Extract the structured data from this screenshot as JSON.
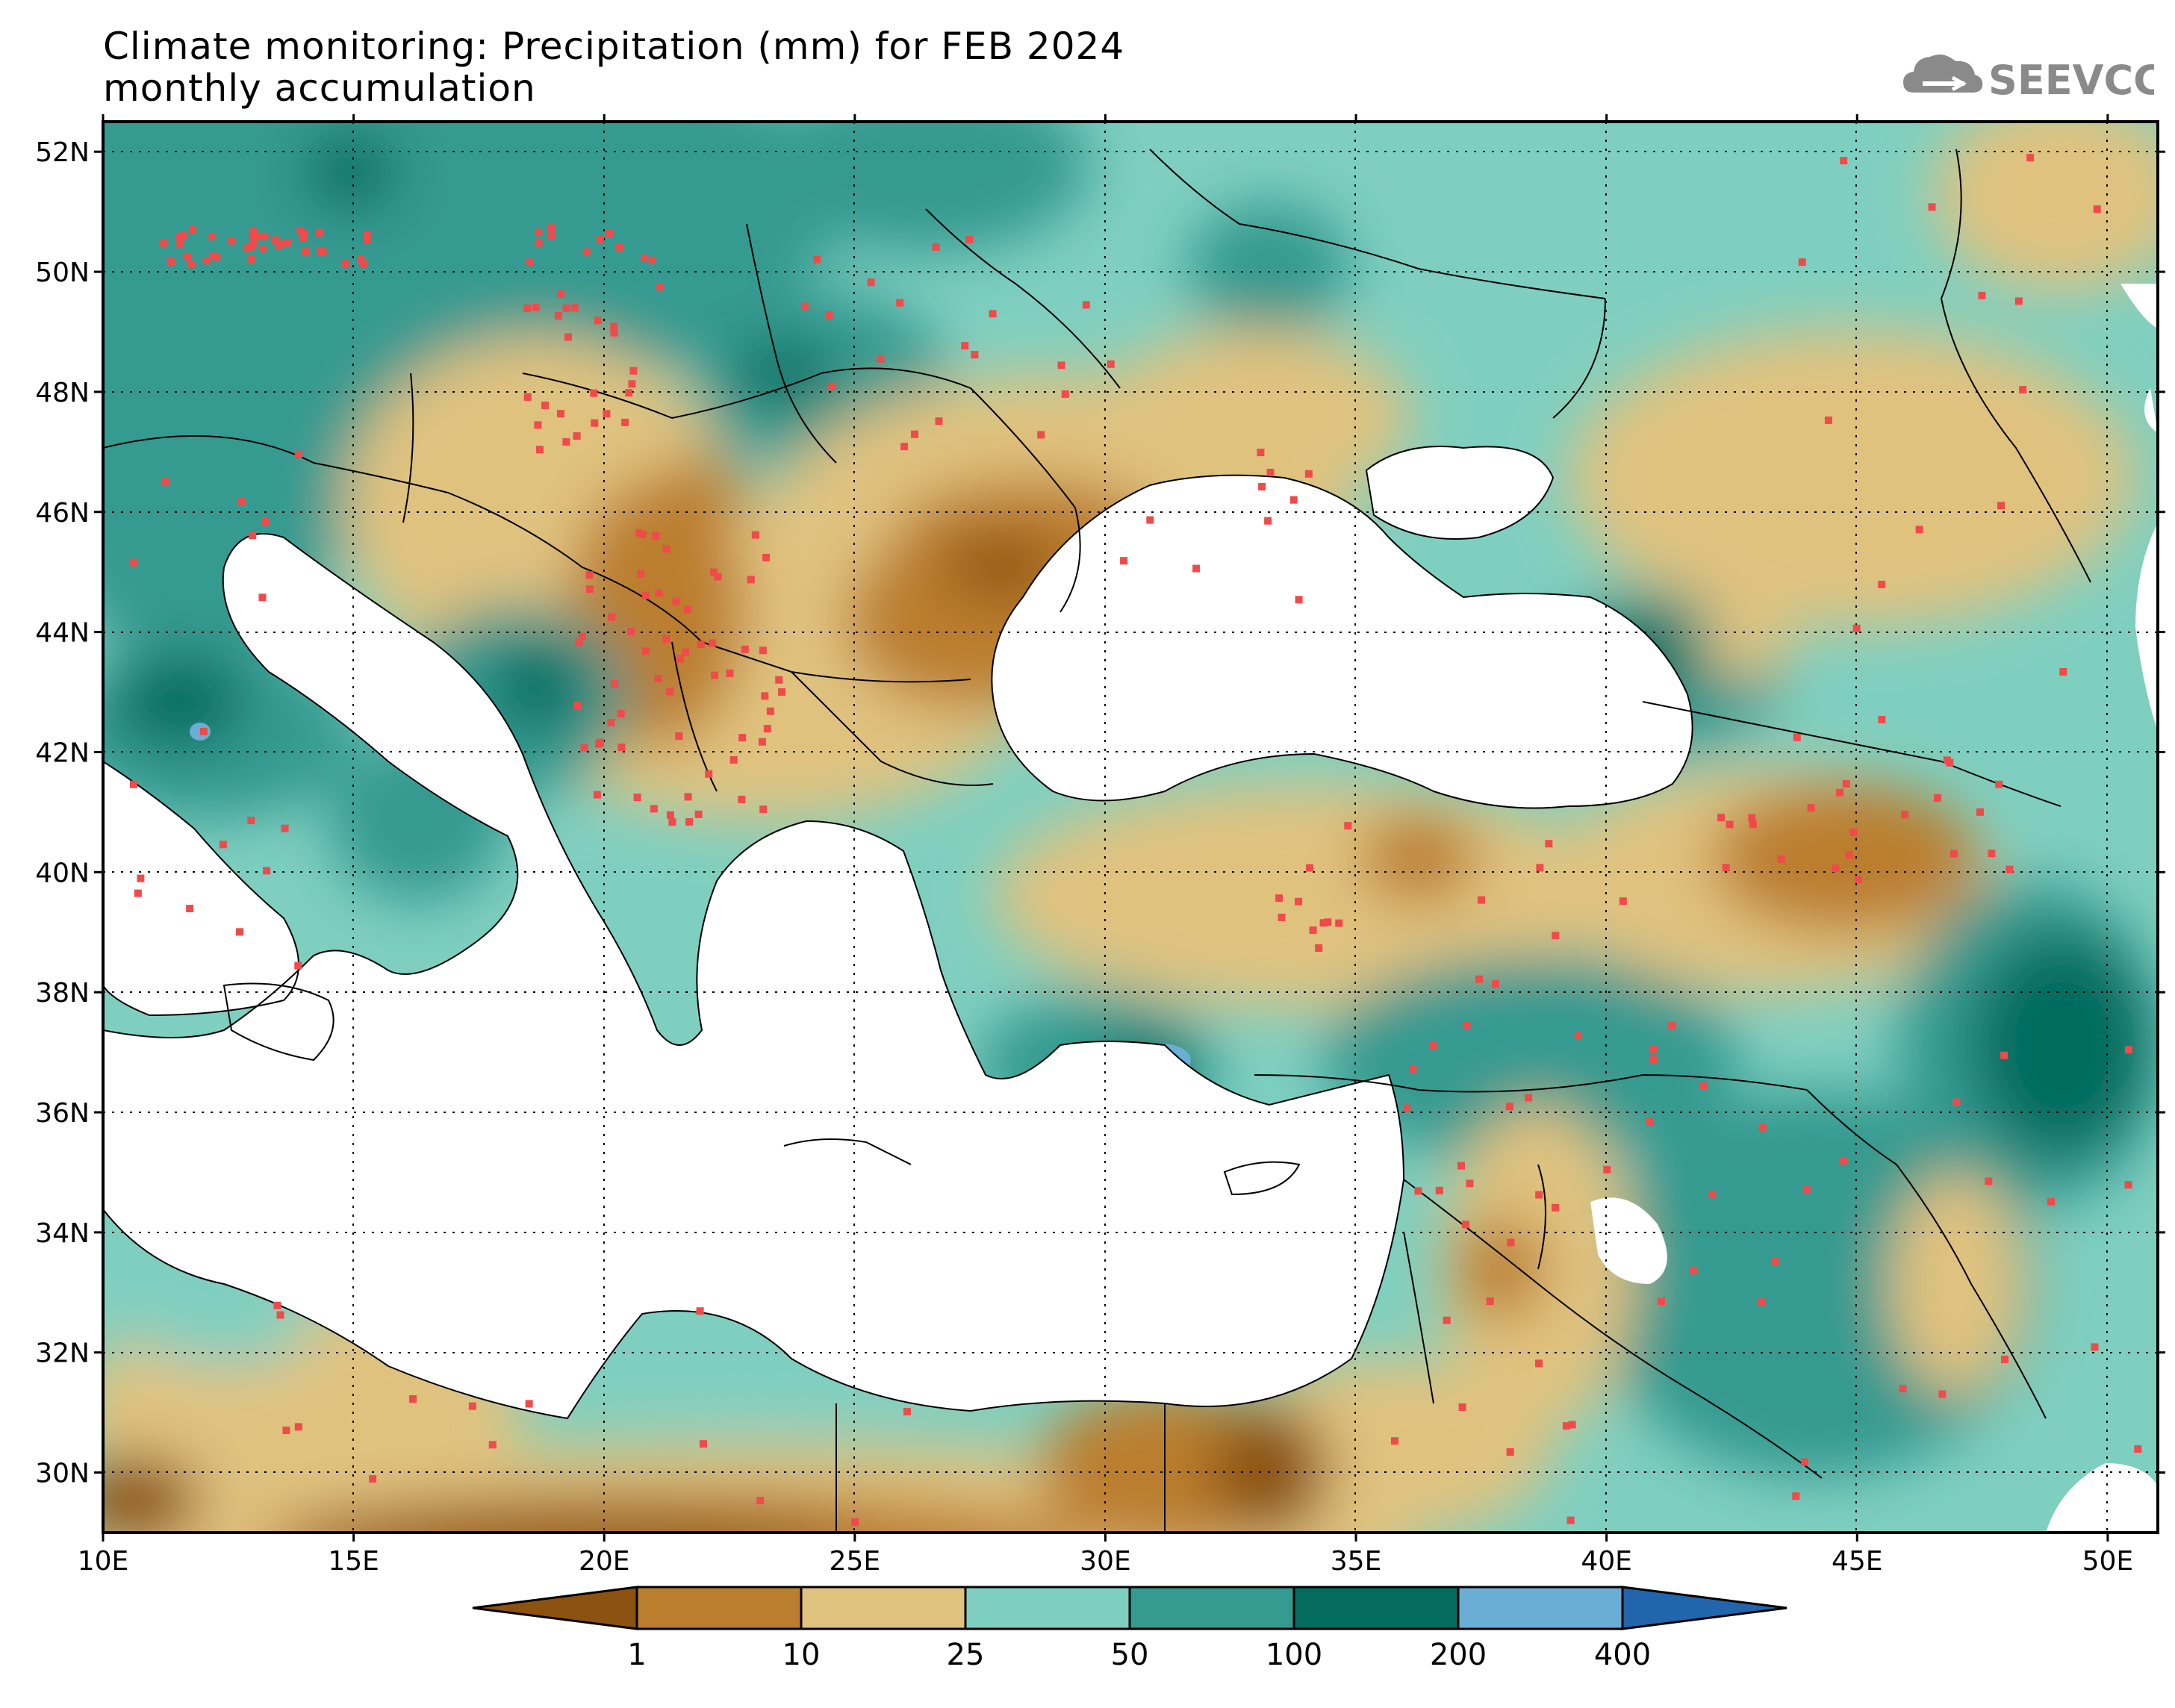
{
  "title": {
    "line1": "Climate monitoring: Precipitation (mm) for FEB 2024",
    "line2": "monthly accumulation"
  },
  "logo": {
    "text": "SEEVCCC",
    "icon": "cloud-icon"
  },
  "map": {
    "lon_range": [
      10,
      51
    ],
    "lat_range": [
      29,
      52.5
    ],
    "lon_ticks": [
      "10E",
      "15E",
      "20E",
      "25E",
      "30E",
      "35E",
      "40E",
      "45E",
      "50E"
    ],
    "lat_ticks": [
      "52N",
      "50N",
      "48N",
      "46N",
      "44N",
      "42N",
      "40N",
      "38N",
      "36N",
      "34N",
      "32N",
      "30N"
    ],
    "grid": "dotted"
  },
  "legend": {
    "boundaries": [
      "1",
      "10",
      "25",
      "50",
      "100",
      "200",
      "400"
    ],
    "colors": [
      "#8b5210",
      "#bb7e2e",
      "#e0c27f",
      "#7fcfc0",
      "#359a90",
      "#046c5e",
      "#6aaed6",
      "#2166ac"
    ]
  }
}
